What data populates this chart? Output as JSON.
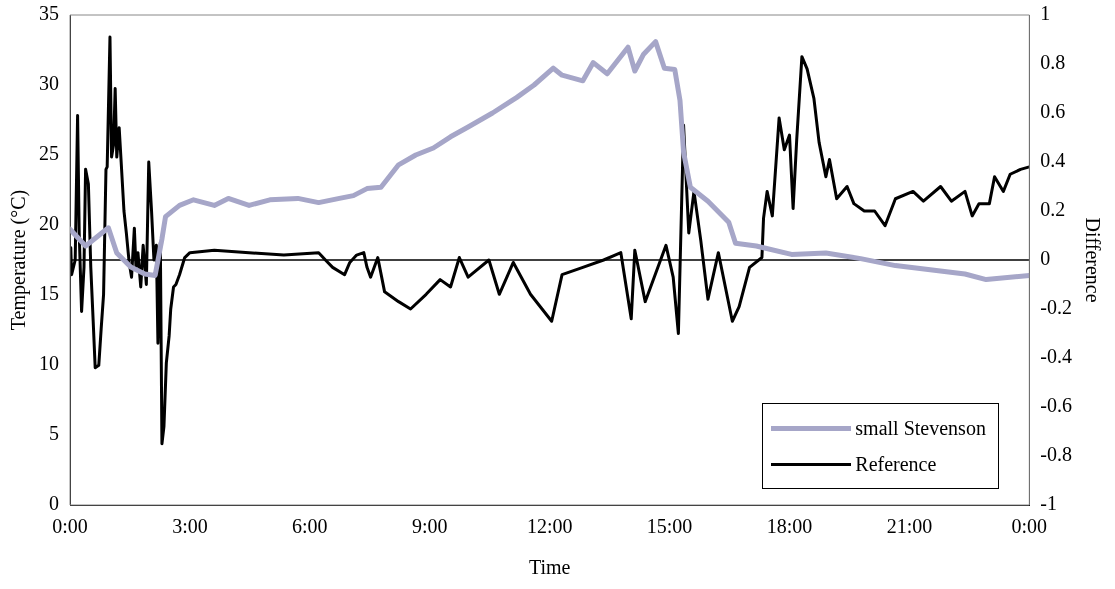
{
  "chart_data": {
    "type": "line",
    "xlabel": "Time",
    "ylabel": "Temperature (°C)",
    "y2label": "Difference",
    "xlim": [
      0,
      24
    ],
    "xticks": [
      {
        "value": 0,
        "label": "0:00"
      },
      {
        "value": 3,
        "label": "3:00"
      },
      {
        "value": 6,
        "label": "6:00"
      },
      {
        "value": 9,
        "label": "9:00"
      },
      {
        "value": 12,
        "label": "12:00"
      },
      {
        "value": 15,
        "label": "15:00"
      },
      {
        "value": 18,
        "label": "18:00"
      },
      {
        "value": 21,
        "label": "21:00"
      },
      {
        "value": 24,
        "label": "0:00"
      }
    ],
    "ylim": [
      0,
      35
    ],
    "yticks": [
      0,
      5,
      10,
      15,
      20,
      25,
      30,
      35
    ],
    "y2lim": [
      -1,
      1
    ],
    "y2ticks": [
      -1,
      -0.8,
      -0.6,
      -0.4,
      -0.2,
      0,
      0.2,
      0.4,
      0.6,
      0.8,
      1
    ],
    "grid": false,
    "legend": "bottom right",
    "marker": "none",
    "line_style": "solid",
    "ref_lines": [
      {
        "axis": "y2",
        "value": 0,
        "color": "#000000"
      }
    ],
    "series": [
      {
        "name": "small Stevenson",
        "color": "#a6a6c8",
        "x": [
          0,
          0.39,
          0.96,
          1.17,
          1.52,
          1.87,
          2.13,
          2.3,
          2.39,
          2.74,
          3.09,
          3.61,
          3.96,
          4.48,
          5.0,
          5.7,
          6.22,
          6.74,
          7.09,
          7.43,
          7.78,
          8.22,
          8.65,
          9.09,
          9.52,
          9.96,
          10.57,
          11.17,
          11.61,
          12.09,
          12.31,
          12.83,
          13.09,
          13.44,
          13.96,
          14.13,
          14.35,
          14.65,
          14.87,
          15.13,
          15.26,
          15.35,
          15.52,
          15.96,
          16.48,
          16.65,
          17.17,
          18.05,
          18.91,
          19.78,
          20.65,
          21.52,
          22.39,
          22.92,
          24
        ],
        "values": [
          19.7,
          18.5,
          19.8,
          18.0,
          17.0,
          16.5,
          16.4,
          19.0,
          20.6,
          21.4,
          21.8,
          21.4,
          21.9,
          21.4,
          21.8,
          21.9,
          21.6,
          21.9,
          22.1,
          22.6,
          22.7,
          24.3,
          25.0,
          25.5,
          26.3,
          27.0,
          28.0,
          29.1,
          30.0,
          31.2,
          30.7,
          30.3,
          31.6,
          30.8,
          32.7,
          31.0,
          32.2,
          33.1,
          31.2,
          31.1,
          28.9,
          25.2,
          22.7,
          21.7,
          20.2,
          18.7,
          18.5,
          17.9,
          18.0,
          17.6,
          17.1,
          16.8,
          16.5,
          16.1,
          16.4
        ]
      },
      {
        "name": "Reference",
        "color": "#000000",
        "axis": "y2",
        "x": [
          0.02,
          0.04,
          0.13,
          0.19,
          0.23,
          0.29,
          0.35,
          0.39,
          0.46,
          0.52,
          0.58,
          0.63,
          0.72,
          0.78,
          0.84,
          0.9,
          0.93,
          1.0,
          1.04,
          1.09,
          1.13,
          1.17,
          1.23,
          1.28,
          1.35,
          1.41,
          1.48,
          1.54,
          1.61,
          1.65,
          1.7,
          1.77,
          1.83,
          1.91,
          1.97,
          2.04,
          2.1,
          2.16,
          2.2,
          2.26,
          2.3,
          2.35,
          2.41,
          2.48,
          2.52,
          2.59,
          2.65,
          2.74,
          2.87,
          3.0,
          3.61,
          4.48,
          5.35,
          6.22,
          6.39,
          6.57,
          6.87,
          7.0,
          7.17,
          7.35,
          7.43,
          7.52,
          7.7,
          7.87,
          8.22,
          8.52,
          8.91,
          9.26,
          9.52,
          9.74,
          9.96,
          10.48,
          10.74,
          11.09,
          11.52,
          12.05,
          12.31,
          12.83,
          13.35,
          13.78,
          14.04,
          14.13,
          14.39,
          14.91,
          15.09,
          15.22,
          15.35,
          15.48,
          15.61,
          15.78,
          15.96,
          16.22,
          16.57,
          16.74,
          17.0,
          17.31,
          17.35,
          17.44,
          17.57,
          17.74,
          17.87,
          18.0,
          18.09,
          18.18,
          18.31,
          18.44,
          18.61,
          18.74,
          18.91,
          19.0,
          19.18,
          19.44,
          19.61,
          19.87,
          20.13,
          20.39,
          20.65,
          21.09,
          21.35,
          21.78,
          22.05,
          22.39,
          22.57,
          22.74,
          23.0,
          23.13,
          23.35,
          23.52,
          23.78,
          24.0
        ],
        "values": [
          0.05,
          -0.06,
          0,
          0.59,
          0.11,
          -0.21,
          -0.03,
          0.37,
          0.31,
          -0.03,
          -0.25,
          -0.44,
          -0.43,
          -0.28,
          -0.14,
          0.37,
          0.38,
          0.91,
          0.42,
          0.47,
          0.7,
          0.42,
          0.54,
          0.4,
          0.2,
          0.11,
          -0.01,
          -0.07,
          0.13,
          -0.03,
          0.03,
          -0.11,
          0.06,
          -0.1,
          0.4,
          0.2,
          0,
          0.06,
          -0.34,
          0.07,
          -0.75,
          -0.68,
          -0.42,
          -0.31,
          -0.2,
          -0.11,
          -0.1,
          -0.06,
          0.01,
          0.03,
          0.04,
          0.03,
          0.02,
          0.03,
          0,
          -0.03,
          -0.06,
          -0.01,
          0.02,
          0.03,
          -0.03,
          -0.07,
          0.01,
          -0.13,
          -0.17,
          -0.2,
          -0.14,
          -0.08,
          -0.11,
          0.01,
          -0.07,
          0,
          -0.14,
          -0.01,
          -0.14,
          -0.25,
          -0.06,
          -0.03,
          0,
          0.03,
          -0.24,
          0.04,
          -0.17,
          0.06,
          -0.07,
          -0.3,
          0.55,
          0.11,
          0.28,
          0.08,
          -0.16,
          0.03,
          -0.25,
          -0.19,
          -0.03,
          0.01,
          0.17,
          0.28,
          0.18,
          0.58,
          0.45,
          0.51,
          0.21,
          0.49,
          0.83,
          0.78,
          0.66,
          0.48,
          0.34,
          0.41,
          0.25,
          0.3,
          0.23,
          0.2,
          0.2,
          0.14,
          0.25,
          0.28,
          0.24,
          0.3,
          0.24,
          0.28,
          0.18,
          0.23,
          0.23,
          0.34,
          0.28,
          0.35,
          0.37,
          0.38
        ]
      }
    ]
  }
}
